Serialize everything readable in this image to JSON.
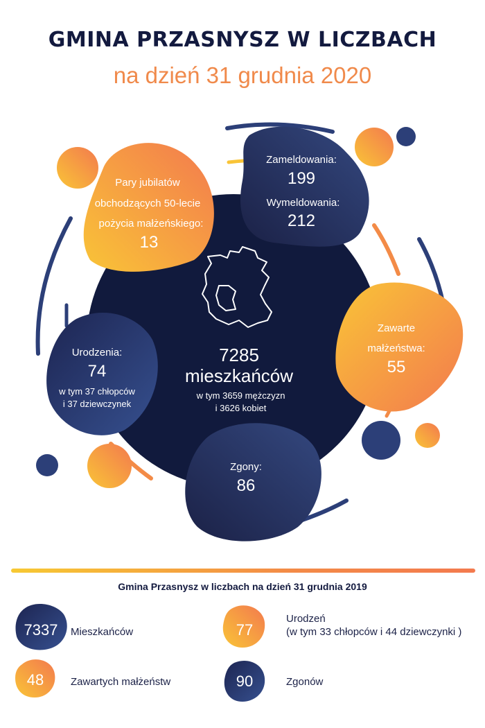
{
  "header": {
    "title": "GMINA PRZASNYSZ W LICZBACH",
    "subtitle": "na dzień 31 grudnia 2020"
  },
  "colors": {
    "navy": "#131a3f",
    "blue": "#2c3f78",
    "orange": "#f38b47",
    "yellow": "#f9c437"
  },
  "stats2020": {
    "population": {
      "value": "7285",
      "label": "mieszkańców",
      "detail_line1": "w tym 3659 mężczyzn",
      "detail_line2": "i 3626 kobiet"
    },
    "jubilees": {
      "line1": "Pary jubilatów",
      "line2": "obchodzących 50-lecie",
      "line3": "pożycia małżeńskiego:",
      "value": "13"
    },
    "registrations": {
      "label": "Zameldowania:",
      "value": "199"
    },
    "deregistrations": {
      "label": "Wymeldowania:",
      "value": "212"
    },
    "marriages": {
      "line1": "Zawarte",
      "line2": "małżeństwa:",
      "value": "55"
    },
    "births": {
      "label": "Urodzenia:",
      "value": "74",
      "detail_line1": "w tym 37 chłopców",
      "detail_line2": "i 37 dziewczynek"
    },
    "deaths": {
      "label": "Zgony:",
      "value": "86"
    }
  },
  "stats2019": {
    "title": "Gmina Przasnysz w liczbach na dzień 31 grudnia 2019",
    "residents": {
      "value": "7337",
      "label": "Mieszkańców"
    },
    "births": {
      "value": "77",
      "label_line1": "Urodzeń",
      "label_line2": "(w tym 33 chłopców i 44 dziewczynki )"
    },
    "marriages": {
      "value": "48",
      "label": "Zawartych małżeństw"
    },
    "deaths": {
      "value": "90",
      "label": "Zgonów"
    }
  }
}
